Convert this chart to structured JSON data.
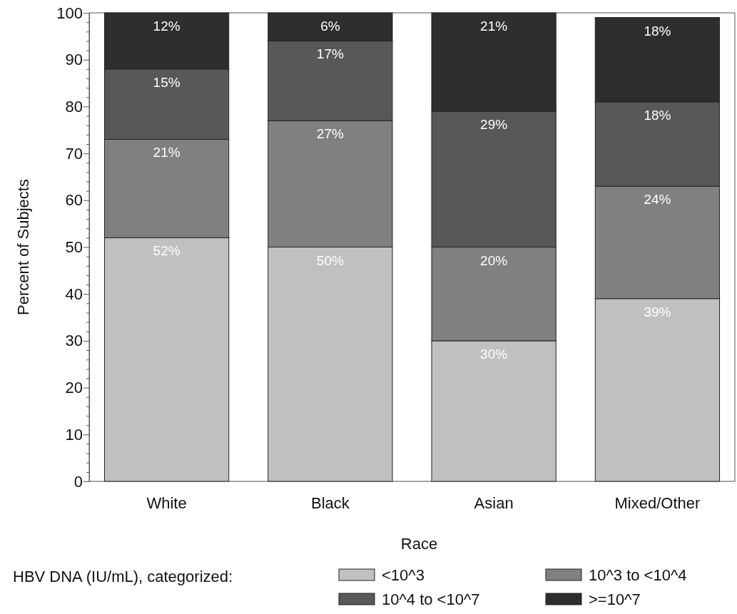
{
  "chart_data": {
    "type": "bar",
    "stacked": true,
    "xlabel": "Race",
    "ylabel": "Percent of Subjects",
    "legend_title": "HBV DNA (IU/mL), categorized:",
    "legend": "bottom",
    "categories": [
      "White",
      "Black",
      "Asian",
      "Mixed/Other"
    ],
    "ylim": [
      0,
      100
    ],
    "yticks": [
      0,
      {
        "value": 2,
        "label": null
      },
      {
        "value": 4,
        "label": null
      },
      {
        "value": 6,
        "label": null
      },
      {
        "value": 8,
        "label": null
      },
      10,
      {
        "value": 12,
        "label": null
      },
      {
        "value": 14,
        "label": null
      },
      {
        "value": 16,
        "label": null
      },
      {
        "value": 18,
        "label": null
      },
      20,
      {
        "value": 22,
        "label": null
      },
      {
        "value": 24,
        "label": null
      },
      {
        "value": 26,
        "label": null
      },
      {
        "value": 28,
        "label": null
      },
      30,
      {
        "value": 32,
        "label": null
      },
      {
        "value": 34,
        "label": null
      },
      {
        "value": 36,
        "label": null
      },
      {
        "value": 38,
        "label": null
      },
      40,
      {
        "value": 42,
        "label": null
      },
      {
        "value": 44,
        "label": null
      },
      {
        "value": 46,
        "label": null
      },
      {
        "value": 48,
        "label": null
      },
      50,
      {
        "value": 52,
        "label": null
      },
      {
        "value": 54,
        "label": null
      },
      {
        "value": 56,
        "label": null
      },
      {
        "value": 58,
        "label": null
      },
      60,
      {
        "value": 62,
        "label": null
      },
      {
        "value": 64,
        "label": null
      },
      {
        "value": 66,
        "label": null
      },
      {
        "value": 68,
        "label": null
      },
      70,
      {
        "value": 72,
        "label": null
      },
      {
        "value": 74,
        "label": null
      },
      {
        "value": 76,
        "label": null
      },
      {
        "value": 78,
        "label": null
      },
      80,
      {
        "value": 82,
        "label": null
      },
      {
        "value": 84,
        "label": null
      },
      {
        "value": 86,
        "label": null
      },
      {
        "value": 88,
        "label": null
      },
      90,
      {
        "value": 92,
        "label": null
      },
      {
        "value": 94,
        "label": null
      },
      {
        "value": 96,
        "label": null
      },
      {
        "value": 98,
        "label": null
      },
      100
    ],
    "series": [
      {
        "name": "<10^3",
        "color": "#c0c0c0",
        "values": [
          52,
          50,
          30,
          39
        ],
        "value_labels": [
          "52%",
          "50%",
          "30%",
          "39%"
        ]
      },
      {
        "name": "10^3 to <10^4",
        "color": "#808080",
        "values": [
          21,
          27,
          20,
          24
        ],
        "value_labels": [
          "21%",
          "27%",
          "20%",
          "24%"
        ]
      },
      {
        "name": "10^4 to <10^7",
        "color": "#585858",
        "values": [
          15,
          17,
          29,
          18
        ],
        "value_labels": [
          "15%",
          "17%",
          "29%",
          "18%"
        ]
      },
      {
        "name": ">=10^7",
        "color": "#2e2e2e",
        "values": [
          12,
          6,
          21,
          18
        ],
        "value_labels": [
          "12%",
          "6%",
          "21%",
          "18%"
        ]
      }
    ]
  }
}
